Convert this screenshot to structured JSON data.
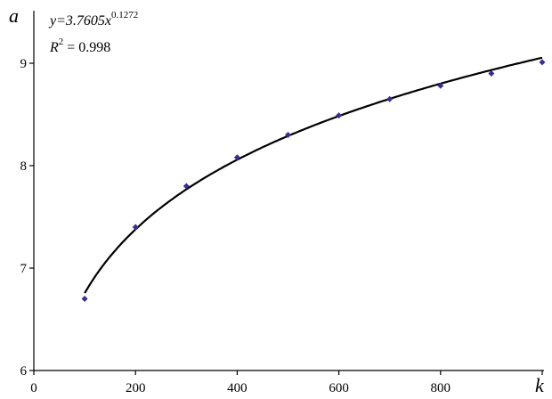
{
  "chart_data": {
    "type": "scatter",
    "xlabel": "k",
    "ylabel": "a",
    "xlim": [
      0,
      1000
    ],
    "ylim": [
      6,
      9.5
    ],
    "x_ticks": [
      "0",
      "200",
      "400",
      "600",
      "800"
    ],
    "y_ticks": [
      "6",
      "7",
      "8",
      "9"
    ],
    "grid": false,
    "series": [
      {
        "marker": "diamond",
        "color": "#3a2f8f",
        "x": [
          100,
          200,
          300,
          400,
          500,
          600,
          700,
          800,
          900,
          1000
        ],
        "y": [
          6.7,
          7.4,
          7.8,
          8.08,
          8.3,
          8.49,
          8.65,
          8.78,
          8.9,
          9.01
        ]
      }
    ],
    "trendline": {
      "kind": "power",
      "coefficient": 3.7605,
      "exponent": 0.1272,
      "color": "#000000"
    },
    "equation": {
      "prefix": "y=3.7605x",
      "exponent": "0.1272",
      "r2_label": "R",
      "r2_sup": "2",
      "r2_value": " = 0.998"
    }
  }
}
